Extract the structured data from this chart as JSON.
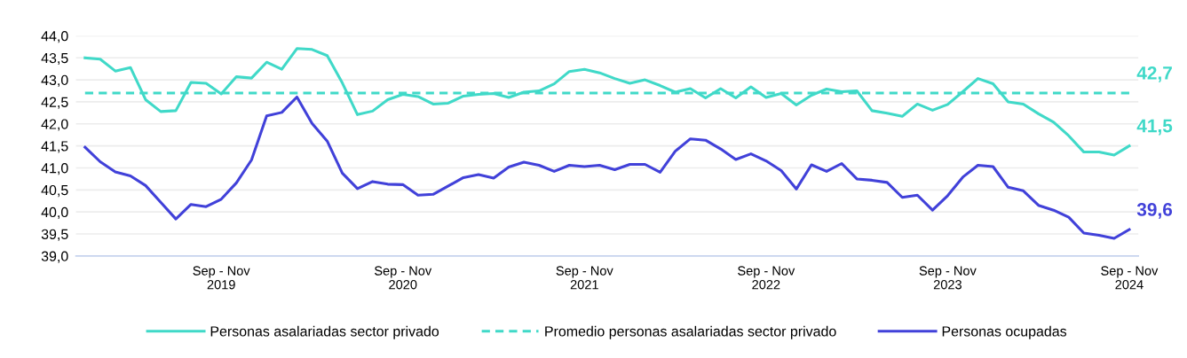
{
  "chart_data": {
    "type": "line",
    "categories": [
      null,
      null,
      null,
      null,
      null,
      null,
      null,
      null,
      null,
      "Sep - Nov\n2019",
      null,
      null,
      null,
      null,
      null,
      null,
      null,
      null,
      null,
      null,
      null,
      "Sep - Nov\n2020",
      null,
      null,
      null,
      null,
      null,
      null,
      null,
      null,
      null,
      null,
      null,
      "Sep - Nov\n2021",
      null,
      null,
      null,
      null,
      null,
      null,
      null,
      null,
      null,
      null,
      null,
      "Sep - Nov\n2022",
      null,
      null,
      null,
      null,
      null,
      null,
      null,
      null,
      null,
      null,
      null,
      "Sep - Nov\n2023",
      null,
      null,
      null,
      null,
      null,
      null,
      null,
      null,
      null,
      null,
      null,
      "Sep - Nov\n2024"
    ],
    "series": [
      {
        "name": "Personas asalariadas sector privado",
        "color": "#40d9c8",
        "line_style": "solid",
        "values": [
          43.5,
          43.47,
          43.2,
          43.28,
          42.55,
          42.28,
          42.3,
          42.94,
          42.92,
          42.68,
          43.07,
          43.04,
          43.4,
          43.24,
          43.71,
          43.69,
          43.55,
          42.93,
          42.21,
          42.29,
          42.55,
          42.67,
          42.62,
          42.45,
          42.47,
          42.63,
          42.67,
          42.69,
          42.6,
          42.72,
          42.75,
          42.91,
          43.19,
          43.24,
          43.16,
          43.03,
          42.92,
          43.0,
          42.87,
          42.72,
          42.8,
          42.59,
          42.8,
          42.59,
          42.84,
          42.6,
          42.69,
          42.43,
          42.65,
          42.79,
          42.73,
          42.75,
          42.3,
          42.24,
          42.17,
          42.45,
          42.31,
          42.44,
          42.73,
          43.03,
          42.91,
          42.5,
          42.45,
          42.23,
          42.04,
          41.73,
          41.36,
          41.36,
          41.29,
          41.5
        ],
        "value_labels": [
          null,
          null,
          null,
          null,
          null,
          null,
          null,
          null,
          null,
          null,
          null,
          null,
          null,
          null,
          null,
          null,
          null,
          null,
          null,
          null,
          null,
          null,
          null,
          null,
          null,
          null,
          null,
          null,
          null,
          null,
          null,
          null,
          null,
          null,
          null,
          null,
          null,
          null,
          null,
          null,
          null,
          null,
          null,
          null,
          null,
          null,
          null,
          null,
          null,
          null,
          null,
          null,
          null,
          null,
          null,
          null,
          null,
          null,
          null,
          null,
          null,
          null,
          null,
          null,
          null,
          null,
          null,
          null,
          null,
          "41,5"
        ]
      },
      {
        "name": "Promedio personas asalariadas sector privado",
        "color": "#40d9c8",
        "line_style": "dashed",
        "values": [
          42.7,
          42.7,
          42.7,
          42.7,
          42.7,
          42.7,
          42.7,
          42.7,
          42.7,
          42.7,
          42.7,
          42.7,
          42.7,
          42.7,
          42.7,
          42.7,
          42.7,
          42.7,
          42.7,
          42.7,
          42.7,
          42.7,
          42.7,
          42.7,
          42.7,
          42.7,
          42.7,
          42.7,
          42.7,
          42.7,
          42.7,
          42.7,
          42.7,
          42.7,
          42.7,
          42.7,
          42.7,
          42.7,
          42.7,
          42.7,
          42.7,
          42.7,
          42.7,
          42.7,
          42.7,
          42.7,
          42.7,
          42.7,
          42.7,
          42.7,
          42.7,
          42.7,
          42.7,
          42.7,
          42.7,
          42.7,
          42.7,
          42.7,
          42.7,
          42.7,
          42.7,
          42.7,
          42.7,
          42.7,
          42.7,
          42.7,
          42.7,
          42.7,
          42.7,
          42.7
        ],
        "value_labels": [
          null,
          null,
          null,
          null,
          null,
          null,
          null,
          null,
          null,
          null,
          null,
          null,
          null,
          null,
          null,
          null,
          null,
          null,
          null,
          null,
          null,
          null,
          null,
          null,
          null,
          null,
          null,
          null,
          null,
          null,
          null,
          null,
          null,
          null,
          null,
          null,
          null,
          null,
          null,
          null,
          null,
          null,
          null,
          null,
          null,
          null,
          null,
          null,
          null,
          null,
          null,
          null,
          null,
          null,
          null,
          null,
          null,
          null,
          null,
          null,
          null,
          null,
          null,
          null,
          null,
          null,
          null,
          null,
          null,
          "42,7"
        ]
      },
      {
        "name": "Personas ocupadas",
        "color": "#4141d9",
        "line_style": "solid",
        "values": [
          41.47,
          41.14,
          40.91,
          40.82,
          40.6,
          40.22,
          39.84,
          40.17,
          40.12,
          40.29,
          40.66,
          41.18,
          42.18,
          42.26,
          42.61,
          42.01,
          41.61,
          40.88,
          40.53,
          40.69,
          40.63,
          40.62,
          40.38,
          40.4,
          40.59,
          40.78,
          40.85,
          40.77,
          41.02,
          41.13,
          41.06,
          40.92,
          41.06,
          41.03,
          41.06,
          40.96,
          41.08,
          41.08,
          40.9,
          41.38,
          41.66,
          41.63,
          41.43,
          41.19,
          41.32,
          41.16,
          40.94,
          40.52,
          41.07,
          40.92,
          41.1,
          40.75,
          40.72,
          40.67,
          40.33,
          40.38,
          40.04,
          40.37,
          40.79,
          41.06,
          41.03,
          40.56,
          40.48,
          40.15,
          40.04,
          39.88,
          39.52,
          39.47,
          39.4,
          39.6
        ],
        "value_labels": [
          null,
          null,
          null,
          null,
          null,
          null,
          null,
          null,
          null,
          null,
          null,
          null,
          null,
          null,
          null,
          null,
          null,
          null,
          null,
          null,
          null,
          null,
          null,
          null,
          null,
          null,
          null,
          null,
          null,
          null,
          null,
          null,
          null,
          null,
          null,
          null,
          null,
          null,
          null,
          null,
          null,
          null,
          null,
          null,
          null,
          null,
          null,
          null,
          null,
          null,
          null,
          null,
          null,
          null,
          null,
          null,
          null,
          null,
          null,
          null,
          null,
          null,
          null,
          null,
          null,
          null,
          null,
          null,
          null,
          "39,6"
        ]
      }
    ],
    "ylim": [
      39.0,
      44.0
    ],
    "yticks": [
      {
        "value": 39.0,
        "label": "39,0"
      },
      {
        "value": 39.5,
        "label": "39,5"
      },
      {
        "value": 40.0,
        "label": "40,0"
      },
      {
        "value": 40.5,
        "label": "40,5"
      },
      {
        "value": 41.0,
        "label": "41,0"
      },
      {
        "value": 41.5,
        "label": "41,5"
      },
      {
        "value": 42.0,
        "label": "42,0"
      },
      {
        "value": 42.5,
        "label": "42,5"
      },
      {
        "value": 43.0,
        "label": "43,0"
      },
      {
        "value": 43.5,
        "label": "43,5"
      },
      {
        "value": 44.0,
        "label": "44,0"
      }
    ],
    "grid": "y",
    "legend": "bottom",
    "marker": "none"
  }
}
